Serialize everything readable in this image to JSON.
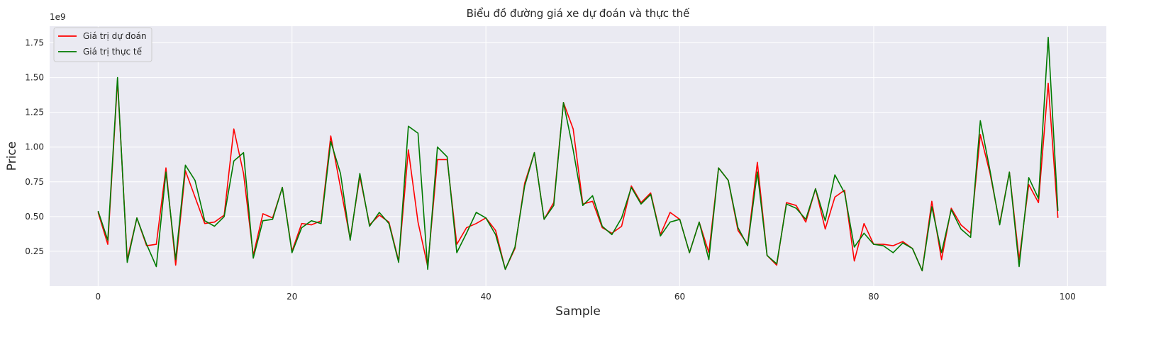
{
  "chart_data": {
    "type": "line",
    "title": "Biểu đồ đường giá xe dự đoán và thực thế",
    "xlabel": "Sample",
    "ylabel": "Price",
    "y_scale_label": "1e9",
    "xlim": [
      -5,
      104
    ],
    "ylim": [
      0.0,
      1.87
    ],
    "x_ticks": [
      0,
      20,
      40,
      60,
      80,
      100
    ],
    "y_ticks": [
      0.25,
      0.5,
      0.75,
      1.0,
      1.25,
      1.5,
      1.75
    ],
    "y_tick_labels": [
      "0.25",
      "0.50",
      "0.75",
      "1.00",
      "1.25",
      "1.50",
      "1.75"
    ],
    "grid": true,
    "legend_position": "upper-left",
    "x": [
      0,
      1,
      2,
      3,
      4,
      5,
      6,
      7,
      8,
      9,
      10,
      11,
      12,
      13,
      14,
      15,
      16,
      17,
      18,
      19,
      20,
      21,
      22,
      23,
      24,
      25,
      26,
      27,
      28,
      29,
      30,
      31,
      32,
      33,
      34,
      35,
      36,
      37,
      38,
      39,
      40,
      41,
      42,
      43,
      44,
      45,
      46,
      47,
      48,
      49,
      50,
      51,
      52,
      53,
      54,
      55,
      56,
      57,
      58,
      59,
      60,
      61,
      62,
      63,
      64,
      65,
      66,
      67,
      68,
      69,
      70,
      71,
      72,
      73,
      74,
      75,
      76,
      77,
      78,
      79,
      80,
      81,
      82,
      83,
      84,
      85,
      86,
      87,
      88,
      89,
      90,
      91,
      92,
      93,
      94,
      95,
      96,
      97,
      98,
      99
    ],
    "series": [
      {
        "name": "Giá trị dự đoán",
        "color": "#ff0000",
        "values": [
          0.53,
          0.3,
          1.48,
          0.19,
          0.49,
          0.29,
          0.3,
          0.85,
          0.15,
          0.83,
          0.64,
          0.45,
          0.46,
          0.51,
          1.13,
          0.81,
          0.22,
          0.52,
          0.49,
          0.71,
          0.25,
          0.45,
          0.44,
          0.47,
          1.08,
          0.71,
          0.34,
          0.79,
          0.44,
          0.51,
          0.46,
          0.18,
          0.98,
          0.46,
          0.14,
          0.91,
          0.91,
          0.3,
          0.42,
          0.45,
          0.49,
          0.4,
          0.12,
          0.27,
          0.74,
          0.96,
          0.48,
          0.6,
          1.32,
          1.13,
          0.59,
          0.61,
          0.42,
          0.38,
          0.43,
          0.72,
          0.6,
          0.67,
          0.37,
          0.53,
          0.48,
          0.24,
          0.46,
          0.24,
          0.85,
          0.76,
          0.4,
          0.3,
          0.89,
          0.22,
          0.15,
          0.6,
          0.58,
          0.46,
          0.7,
          0.41,
          0.64,
          0.69,
          0.18,
          0.45,
          0.3,
          0.3,
          0.29,
          0.32,
          0.27,
          0.11,
          0.61,
          0.19,
          0.56,
          0.44,
          0.38,
          1.09,
          0.81,
          0.45,
          0.82,
          0.19,
          0.73,
          0.6,
          1.46,
          0.49
        ]
      },
      {
        "name": "Giá trị thực tế",
        "color": "#007a00",
        "values": [
          0.54,
          0.33,
          1.5,
          0.17,
          0.49,
          0.3,
          0.14,
          0.82,
          0.19,
          0.87,
          0.76,
          0.47,
          0.43,
          0.5,
          0.9,
          0.96,
          0.2,
          0.47,
          0.48,
          0.71,
          0.24,
          0.42,
          0.47,
          0.45,
          1.04,
          0.81,
          0.33,
          0.81,
          0.43,
          0.53,
          0.45,
          0.17,
          1.15,
          1.1,
          0.12,
          1.0,
          0.93,
          0.24,
          0.38,
          0.53,
          0.49,
          0.37,
          0.12,
          0.28,
          0.72,
          0.96,
          0.48,
          0.58,
          1.32,
          0.98,
          0.58,
          0.65,
          0.43,
          0.37,
          0.49,
          0.71,
          0.59,
          0.66,
          0.36,
          0.46,
          0.48,
          0.24,
          0.46,
          0.19,
          0.85,
          0.76,
          0.42,
          0.29,
          0.82,
          0.22,
          0.16,
          0.59,
          0.56,
          0.48,
          0.7,
          0.47,
          0.8,
          0.67,
          0.28,
          0.38,
          0.3,
          0.29,
          0.24,
          0.31,
          0.27,
          0.11,
          0.57,
          0.24,
          0.55,
          0.41,
          0.35,
          1.19,
          0.83,
          0.44,
          0.82,
          0.14,
          0.78,
          0.63,
          1.79,
          0.54
        ]
      }
    ]
  },
  "colors": {
    "background": "#eaeaf2",
    "grid": "#ffffff",
    "predicted": "#ff0000",
    "actual": "#007a00"
  }
}
